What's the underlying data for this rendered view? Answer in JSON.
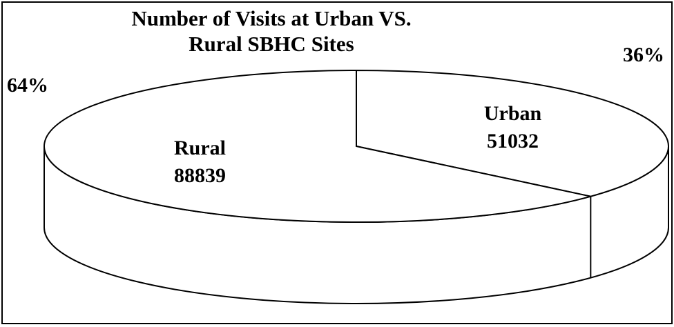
{
  "chart_data": {
    "type": "pie3d",
    "title": "Number of Visits at Urban VS. Rural SBHC Sites",
    "categories": [
      "Rural",
      "Urban"
    ],
    "values": [
      88839,
      51032
    ],
    "percentages": [
      64,
      36
    ],
    "percentage_labels": [
      "64%",
      "36%"
    ],
    "color": "#ffffff"
  }
}
